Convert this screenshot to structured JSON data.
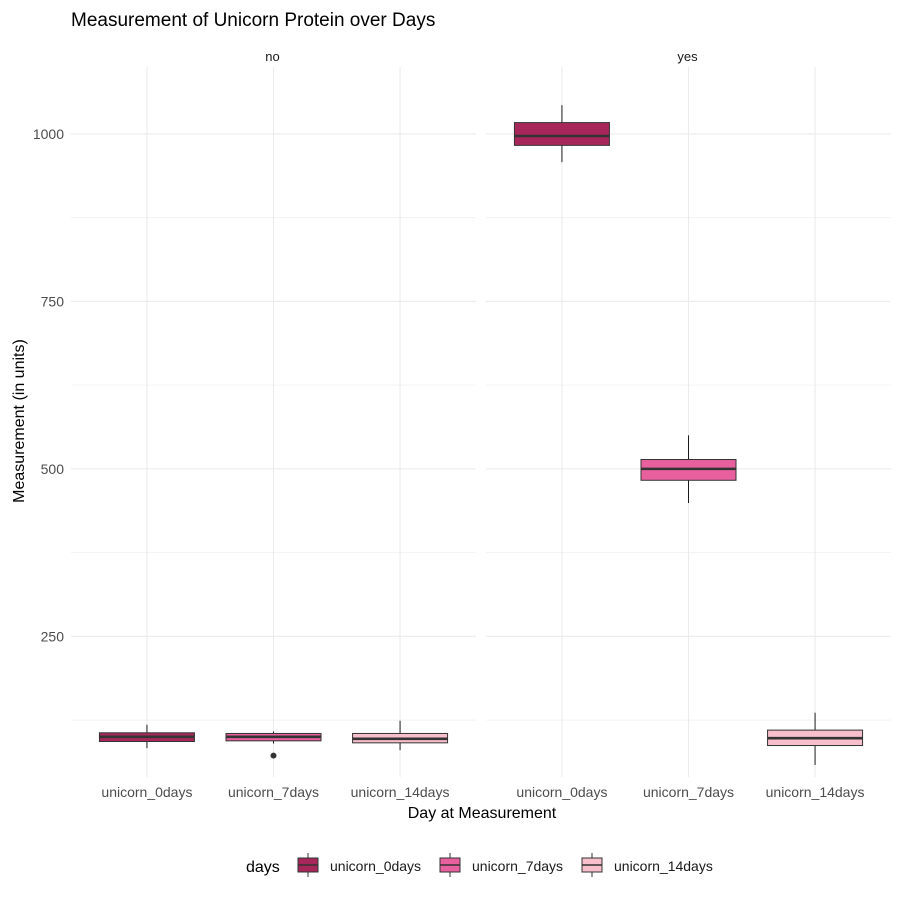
{
  "chart_data": {
    "type": "boxplot",
    "title": "Measurement of Unicorn Protein over Days",
    "xlabel": "Day at Measurement",
    "ylabel": "Measurement (in units)",
    "yticks": [
      250,
      500,
      750,
      1000
    ],
    "ylim": [
      40,
      1100
    ],
    "categories": [
      "unicorn_0days",
      "unicorn_7days",
      "unicorn_14days"
    ],
    "legend": {
      "title": "days",
      "position": "bottom",
      "entries": [
        {
          "label": "unicorn_0days",
          "color": "#A8275A"
        },
        {
          "label": "unicorn_7days",
          "color": "#E8609E"
        },
        {
          "label": "unicorn_14days",
          "color": "#F7BECB"
        }
      ]
    },
    "facets": [
      {
        "label": "no",
        "boxes": [
          {
            "category": "unicorn_0days",
            "min": 83,
            "q1": 93,
            "median": 100,
            "q3": 106,
            "max": 118,
            "outliers": []
          },
          {
            "category": "unicorn_7days",
            "min": 90,
            "q1": 94,
            "median": 100,
            "q3": 105,
            "max": 108,
            "outliers": [
              72
            ]
          },
          {
            "category": "unicorn_14days",
            "min": 80,
            "q1": 91,
            "median": 97,
            "q3": 105,
            "max": 124,
            "outliers": []
          }
        ]
      },
      {
        "label": "yes",
        "boxes": [
          {
            "category": "unicorn_0days",
            "min": 958,
            "q1": 983,
            "median": 997,
            "q3": 1017,
            "max": 1043,
            "outliers": []
          },
          {
            "category": "unicorn_7days",
            "min": 449,
            "q1": 483,
            "median": 500,
            "q3": 514,
            "max": 550,
            "outliers": []
          },
          {
            "category": "unicorn_14days",
            "min": 58,
            "q1": 87,
            "median": 98,
            "q3": 110,
            "max": 136,
            "outliers": []
          }
        ]
      }
    ],
    "grid": true
  }
}
